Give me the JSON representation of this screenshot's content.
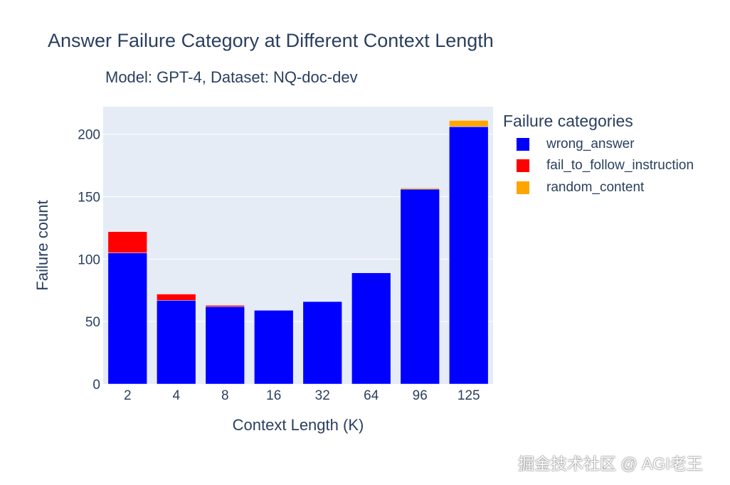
{
  "chart_data": {
    "type": "bar",
    "stacked": true,
    "title": "Answer Failure Category at Different Context Length",
    "subtitle": "Model: GPT-4, Dataset: NQ-doc-dev",
    "xlabel": "Context Length (K)",
    "ylabel": "Failure count",
    "categories": [
      "2",
      "4",
      "8",
      "16",
      "32",
      "64",
      "96",
      "125"
    ],
    "series": [
      {
        "name": "wrong_answer",
        "color": "#0000ff",
        "values": [
          105,
          67,
          62,
          59,
          66,
          89,
          156,
          206
        ]
      },
      {
        "name": "fail_to_follow_instruction",
        "color": "#ff0000",
        "values": [
          17,
          5,
          1,
          0,
          0,
          0,
          0,
          0
        ]
      },
      {
        "name": "random_content",
        "color": "#ffa500",
        "values": [
          0,
          0,
          0,
          0,
          0,
          0,
          1,
          5
        ]
      }
    ],
    "yticks": [
      0,
      50,
      100,
      150,
      200
    ],
    "ylim": [
      0,
      222
    ],
    "legend_title": "Failure categories",
    "legend_position": "right",
    "grid": true
  },
  "watermark": "掘金技术社区 @ AGI老王"
}
